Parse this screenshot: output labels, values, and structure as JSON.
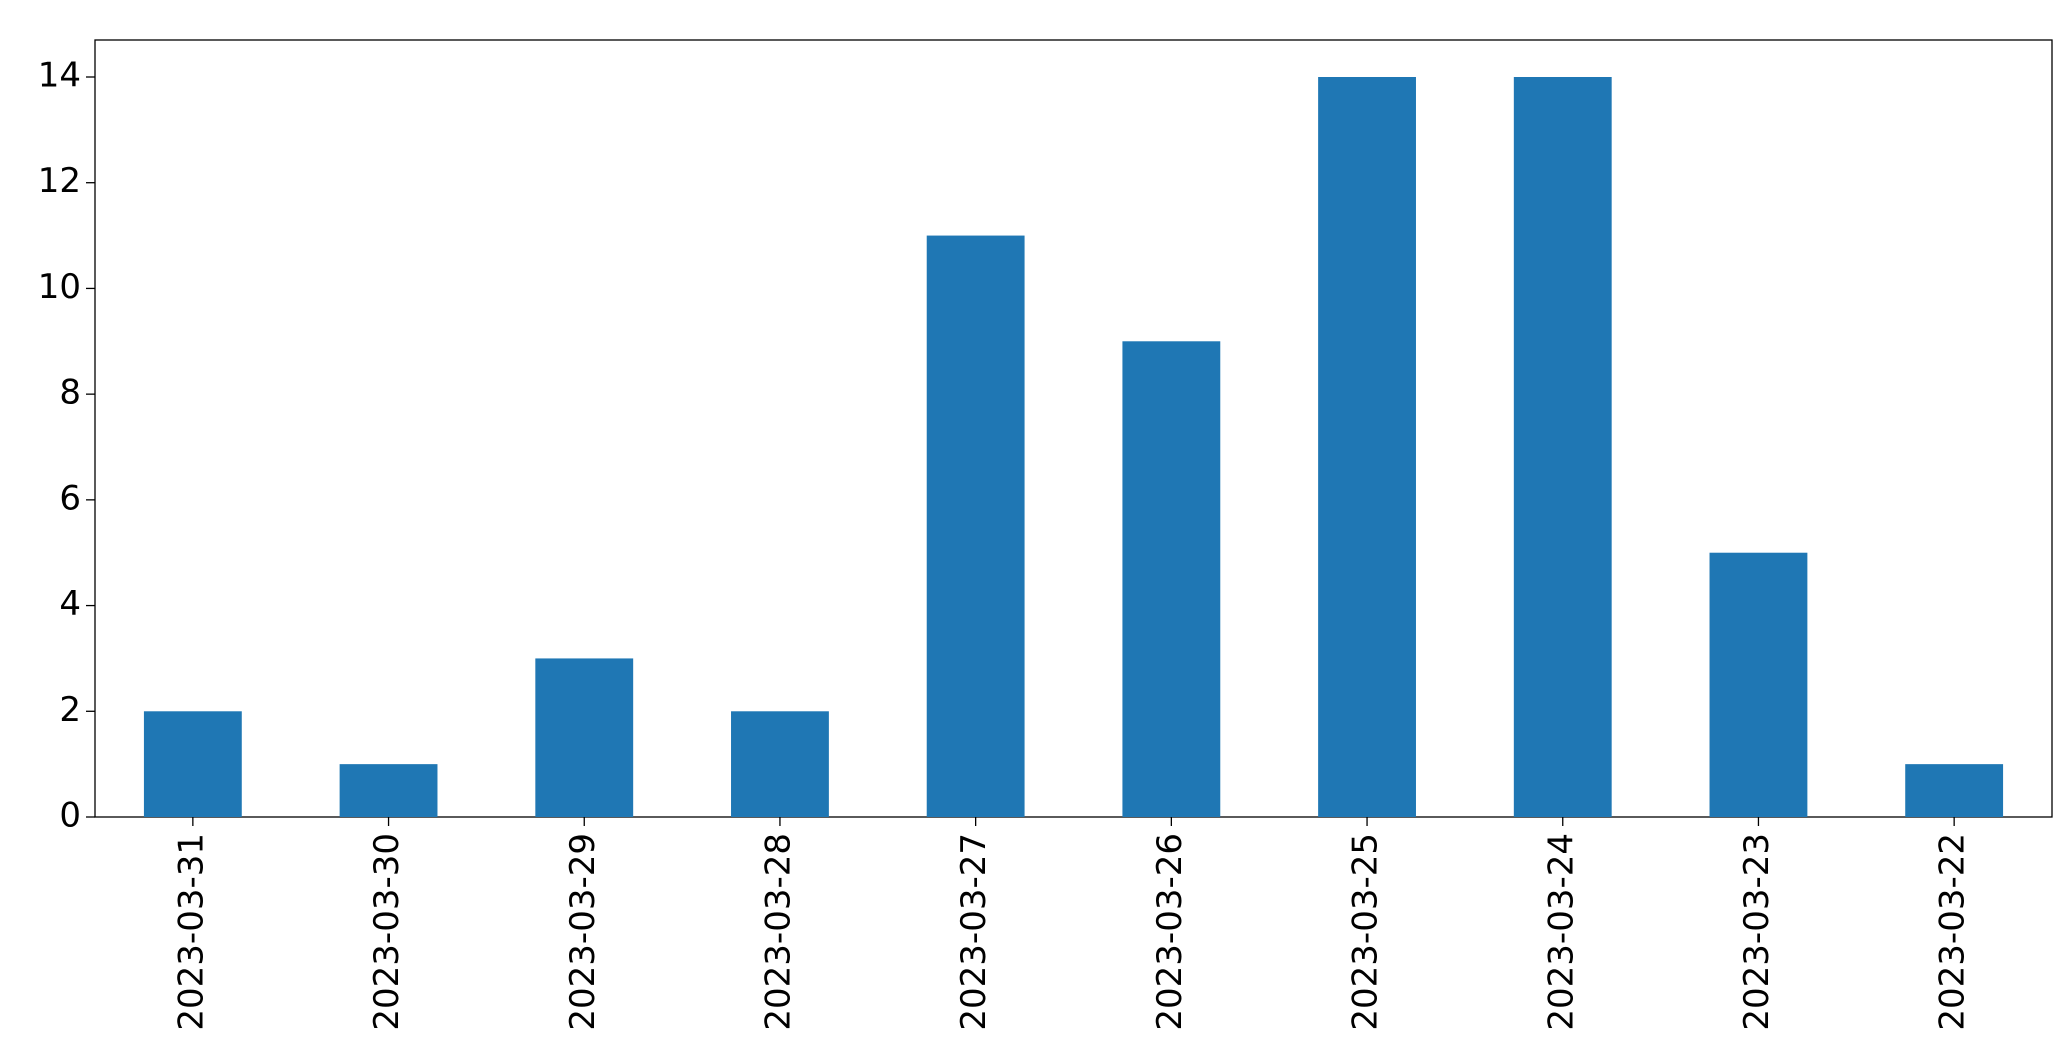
{
  "chart_data": {
    "type": "bar",
    "categories": [
      "2023-03-31",
      "2023-03-30",
      "2023-03-29",
      "2023-03-28",
      "2023-03-27",
      "2023-03-26",
      "2023-03-25",
      "2023-03-24",
      "2023-03-23",
      "2023-03-22"
    ],
    "values": [
      2,
      1,
      3,
      2,
      11,
      9,
      14,
      14,
      5,
      1
    ],
    "color": "#1f77b4",
    "ylim": [
      0,
      14.7
    ],
    "yticks": [
      0,
      2,
      4,
      6,
      8,
      10,
      12,
      14
    ],
    "grid": false
  }
}
